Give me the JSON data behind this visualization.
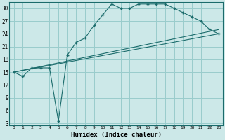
{
  "xlabel": "Humidex (Indice chaleur)",
  "bg_color": "#cce8e8",
  "line_color": "#1a6b6b",
  "grid_color": "#99cccc",
  "xlim": [
    -0.5,
    23.5
  ],
  "ylim": [
    2.5,
    31.5
  ],
  "xticks": [
    0,
    1,
    2,
    3,
    4,
    5,
    6,
    7,
    8,
    9,
    10,
    11,
    12,
    13,
    14,
    15,
    16,
    17,
    18,
    19,
    20,
    21,
    22,
    23
  ],
  "yticks": [
    3,
    6,
    9,
    12,
    15,
    18,
    21,
    24,
    27,
    30
  ],
  "series": [
    {
      "x": [
        0,
        1,
        2,
        3,
        4,
        5,
        6,
        7,
        8,
        9,
        10,
        11,
        12,
        13,
        14,
        15,
        16,
        17,
        18,
        19,
        20,
        21,
        22,
        23
      ],
      "y": [
        15,
        14,
        16,
        16,
        16,
        3.5,
        19,
        22,
        23,
        26,
        28.5,
        31,
        30,
        30,
        31,
        31,
        31,
        31,
        30,
        29,
        28,
        27,
        25,
        24
      ],
      "marker": "+"
    },
    {
      "x": [
        0,
        23
      ],
      "y": [
        15,
        25
      ],
      "marker": null
    },
    {
      "x": [
        0,
        23
      ],
      "y": [
        15,
        24
      ],
      "marker": null
    }
  ]
}
